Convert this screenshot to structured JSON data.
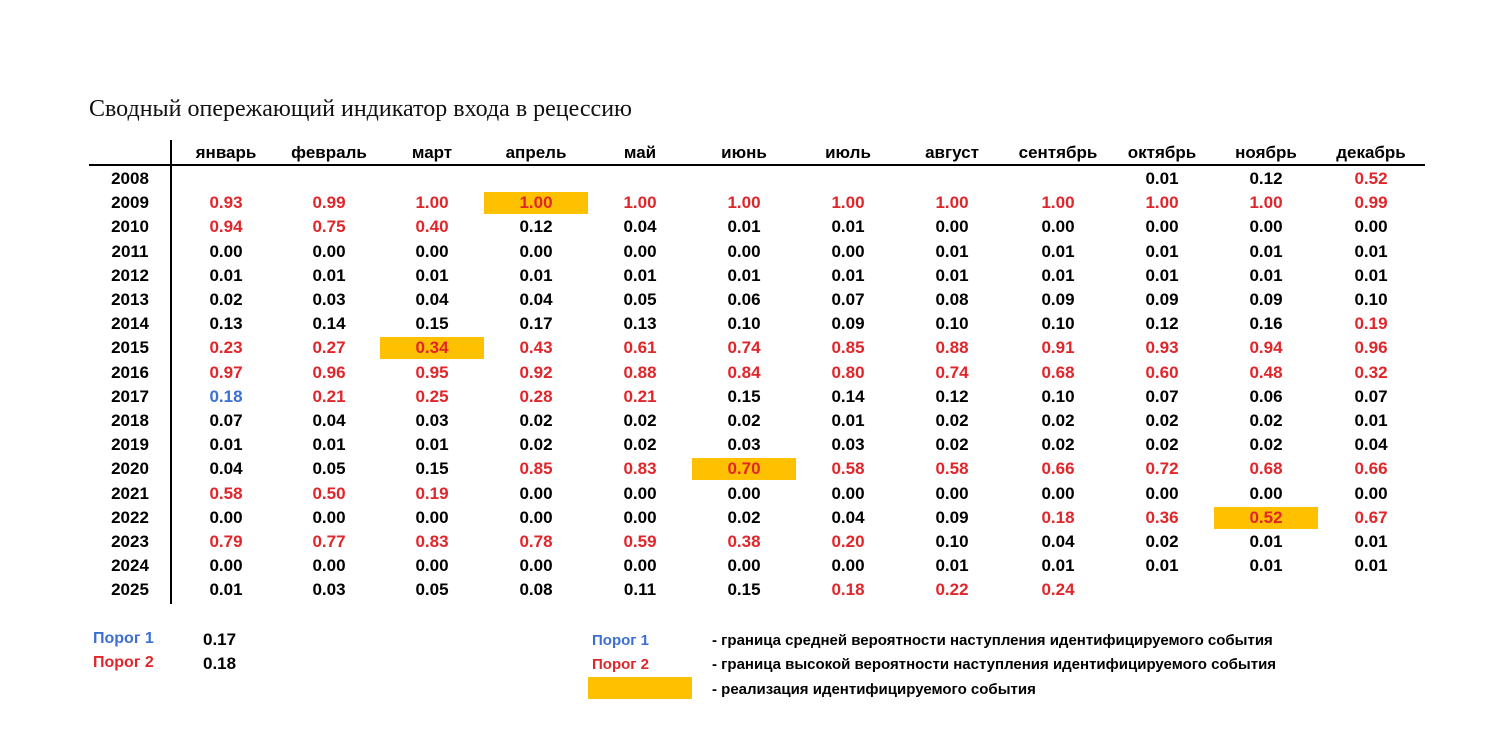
{
  "title": "Сводный опережающий индикатор входа в рецессию",
  "columns": [
    "январь",
    "февраль",
    "март",
    "апрель",
    "май",
    "июнь",
    "июль",
    "август",
    "сентябрь",
    "октябрь",
    "ноябрь",
    "декабрь"
  ],
  "colors": {
    "red": "#e0262a",
    "blue": "#3b6fd4",
    "black": "#000000",
    "highlight": "#ffc000"
  },
  "rows": [
    {
      "year": "2008",
      "values": [
        "",
        "",
        "",
        "",
        "",
        "",
        "",
        "",
        "",
        "0.01",
        "0.12",
        "0.52"
      ],
      "styles": [
        "",
        "",
        "",
        "",
        "",
        "",
        "",
        "",
        "",
        "black",
        "black",
        "red"
      ]
    },
    {
      "year": "2009",
      "values": [
        "0.93",
        "0.99",
        "1.00",
        "1.00",
        "1.00",
        "1.00",
        "1.00",
        "1.00",
        "1.00",
        "1.00",
        "1.00",
        "0.99"
      ],
      "styles": [
        "red",
        "red",
        "red",
        "red hl",
        "red",
        "red",
        "red",
        "red",
        "red",
        "red",
        "red",
        "red"
      ]
    },
    {
      "year": "2010",
      "values": [
        "0.94",
        "0.75",
        "0.40",
        "0.12",
        "0.04",
        "0.01",
        "0.01",
        "0.00",
        "0.00",
        "0.00",
        "0.00",
        "0.00"
      ],
      "styles": [
        "red",
        "red",
        "red",
        "black",
        "black",
        "black",
        "black",
        "black",
        "black",
        "black",
        "black",
        "black"
      ]
    },
    {
      "year": "2011",
      "values": [
        "0.00",
        "0.00",
        "0.00",
        "0.00",
        "0.00",
        "0.00",
        "0.00",
        "0.01",
        "0.01",
        "0.01",
        "0.01",
        "0.01"
      ],
      "styles": [
        "black",
        "black",
        "black",
        "black",
        "black",
        "black",
        "black",
        "black",
        "black",
        "black",
        "black",
        "black"
      ]
    },
    {
      "year": "2012",
      "values": [
        "0.01",
        "0.01",
        "0.01",
        "0.01",
        "0.01",
        "0.01",
        "0.01",
        "0.01",
        "0.01",
        "0.01",
        "0.01",
        "0.01"
      ],
      "styles": [
        "black",
        "black",
        "black",
        "black",
        "black",
        "black",
        "black",
        "black",
        "black",
        "black",
        "black",
        "black"
      ]
    },
    {
      "year": "2013",
      "values": [
        "0.02",
        "0.03",
        "0.04",
        "0.04",
        "0.05",
        "0.06",
        "0.07",
        "0.08",
        "0.09",
        "0.09",
        "0.09",
        "0.10"
      ],
      "styles": [
        "black",
        "black",
        "black",
        "black",
        "black",
        "black",
        "black",
        "black",
        "black",
        "black",
        "black",
        "black"
      ]
    },
    {
      "year": "2014",
      "values": [
        "0.13",
        "0.14",
        "0.15",
        "0.17",
        "0.13",
        "0.10",
        "0.09",
        "0.10",
        "0.10",
        "0.12",
        "0.16",
        "0.19"
      ],
      "styles": [
        "black",
        "black",
        "black",
        "black",
        "black",
        "black",
        "black",
        "black",
        "black",
        "black",
        "black",
        "red"
      ]
    },
    {
      "year": "2015",
      "values": [
        "0.23",
        "0.27",
        "0.34",
        "0.43",
        "0.61",
        "0.74",
        "0.85",
        "0.88",
        "0.91",
        "0.93",
        "0.94",
        "0.96"
      ],
      "styles": [
        "red",
        "red",
        "red hl",
        "red",
        "red",
        "red",
        "red",
        "red",
        "red",
        "red",
        "red",
        "red"
      ]
    },
    {
      "year": "2016",
      "values": [
        "0.97",
        "0.96",
        "0.95",
        "0.92",
        "0.88",
        "0.84",
        "0.80",
        "0.74",
        "0.68",
        "0.60",
        "0.48",
        "0.32"
      ],
      "styles": [
        "red",
        "red",
        "red",
        "red",
        "red",
        "red",
        "red",
        "red",
        "red",
        "red",
        "red",
        "red"
      ]
    },
    {
      "year": "2017",
      "values": [
        "0.18",
        "0.21",
        "0.25",
        "0.28",
        "0.21",
        "0.15",
        "0.14",
        "0.12",
        "0.10",
        "0.07",
        "0.06",
        "0.07"
      ],
      "styles": [
        "blue",
        "red",
        "red",
        "red",
        "red",
        "black",
        "black",
        "black",
        "black",
        "black",
        "black",
        "black"
      ]
    },
    {
      "year": "2018",
      "values": [
        "0.07",
        "0.04",
        "0.03",
        "0.02",
        "0.02",
        "0.02",
        "0.01",
        "0.02",
        "0.02",
        "0.02",
        "0.02",
        "0.01"
      ],
      "styles": [
        "black",
        "black",
        "black",
        "black",
        "black",
        "black",
        "black",
        "black",
        "black",
        "black",
        "black",
        "black"
      ]
    },
    {
      "year": "2019",
      "values": [
        "0.01",
        "0.01",
        "0.01",
        "0.02",
        "0.02",
        "0.03",
        "0.03",
        "0.02",
        "0.02",
        "0.02",
        "0.02",
        "0.04"
      ],
      "styles": [
        "black",
        "black",
        "black",
        "black",
        "black",
        "black",
        "black",
        "black",
        "black",
        "black",
        "black",
        "black"
      ]
    },
    {
      "year": "2020",
      "values": [
        "0.04",
        "0.05",
        "0.15",
        "0.85",
        "0.83",
        "0.70",
        "0.58",
        "0.58",
        "0.66",
        "0.72",
        "0.68",
        "0.66"
      ],
      "styles": [
        "black",
        "black",
        "black",
        "red",
        "red",
        "red hl",
        "red",
        "red",
        "red",
        "red",
        "red",
        "red"
      ]
    },
    {
      "year": "2021",
      "values": [
        "0.58",
        "0.50",
        "0.19",
        "0.00",
        "0.00",
        "0.00",
        "0.00",
        "0.00",
        "0.00",
        "0.00",
        "0.00",
        "0.00"
      ],
      "styles": [
        "red",
        "red",
        "red",
        "black",
        "black",
        "black",
        "black",
        "black",
        "black",
        "black",
        "black",
        "black"
      ]
    },
    {
      "year": "2022",
      "values": [
        "0.00",
        "0.00",
        "0.00",
        "0.00",
        "0.00",
        "0.02",
        "0.04",
        "0.09",
        "0.18",
        "0.36",
        "0.52",
        "0.67"
      ],
      "styles": [
        "black",
        "black",
        "black",
        "black",
        "black",
        "black",
        "black",
        "black",
        "red",
        "red",
        "red hl",
        "red"
      ]
    },
    {
      "year": "2023",
      "values": [
        "0.79",
        "0.77",
        "0.83",
        "0.78",
        "0.59",
        "0.38",
        "0.20",
        "0.10",
        "0.04",
        "0.02",
        "0.01",
        "0.01"
      ],
      "styles": [
        "red",
        "red",
        "red",
        "red",
        "red",
        "red",
        "red",
        "black",
        "black",
        "black",
        "black",
        "black"
      ]
    },
    {
      "year": "2024",
      "values": [
        "0.00",
        "0.00",
        "0.00",
        "0.00",
        "0.00",
        "0.00",
        "0.00",
        "0.01",
        "0.01",
        "0.01",
        "0.01",
        "0.01"
      ],
      "styles": [
        "black",
        "black",
        "black",
        "black",
        "black",
        "black",
        "black",
        "black",
        "black",
        "black",
        "black",
        "black"
      ]
    },
    {
      "year": "2025",
      "values": [
        "0.01",
        "0.03",
        "0.05",
        "0.08",
        "0.11",
        "0.15",
        "0.18",
        "0.22",
        "0.24",
        "",
        "",
        ""
      ],
      "styles": [
        "black",
        "black",
        "black",
        "black",
        "black",
        "black",
        "red",
        "red",
        "red",
        "",
        "",
        ""
      ]
    }
  ],
  "thresholds": {
    "porog1_label": "Порог 1",
    "porog1_value": "0.17",
    "porog2_label": "Порог 2",
    "porog2_value": "0.18"
  },
  "legend": {
    "porog1_label": "Порог 1",
    "porog1_text": "-   граница средней вероятности наступления идентифицируемого события",
    "porog2_label": "Порог 2",
    "porog2_text": "-   граница высокой вероятности наступления идентифицируемого события",
    "highlight_text": "-   реализация идентифицируемого события"
  },
  "chart_data": {
    "type": "table",
    "title": "Сводный опережающий индикатор входа в рецессию",
    "columns": [
      "январь",
      "февраль",
      "март",
      "апрель",
      "май",
      "июнь",
      "июль",
      "август",
      "сентябрь",
      "октябрь",
      "ноябрь",
      "декабрь"
    ],
    "row_labels": [
      "2008",
      "2009",
      "2010",
      "2011",
      "2012",
      "2013",
      "2014",
      "2015",
      "2016",
      "2017",
      "2018",
      "2019",
      "2020",
      "2021",
      "2022",
      "2023",
      "2024",
      "2025"
    ],
    "values": [
      [
        null,
        null,
        null,
        null,
        null,
        null,
        null,
        null,
        null,
        0.01,
        0.12,
        0.52
      ],
      [
        0.93,
        0.99,
        1.0,
        1.0,
        1.0,
        1.0,
        1.0,
        1.0,
        1.0,
        1.0,
        1.0,
        0.99
      ],
      [
        0.94,
        0.75,
        0.4,
        0.12,
        0.04,
        0.01,
        0.01,
        0.0,
        0.0,
        0.0,
        0.0,
        0.0
      ],
      [
        0.0,
        0.0,
        0.0,
        0.0,
        0.0,
        0.0,
        0.0,
        0.01,
        0.01,
        0.01,
        0.01,
        0.01
      ],
      [
        0.01,
        0.01,
        0.01,
        0.01,
        0.01,
        0.01,
        0.01,
        0.01,
        0.01,
        0.01,
        0.01,
        0.01
      ],
      [
        0.02,
        0.03,
        0.04,
        0.04,
        0.05,
        0.06,
        0.07,
        0.08,
        0.09,
        0.09,
        0.09,
        0.1
      ],
      [
        0.13,
        0.14,
        0.15,
        0.17,
        0.13,
        0.1,
        0.09,
        0.1,
        0.1,
        0.12,
        0.16,
        0.19
      ],
      [
        0.23,
        0.27,
        0.34,
        0.43,
        0.61,
        0.74,
        0.85,
        0.88,
        0.91,
        0.93,
        0.94,
        0.96
      ],
      [
        0.97,
        0.96,
        0.95,
        0.92,
        0.88,
        0.84,
        0.8,
        0.74,
        0.68,
        0.6,
        0.48,
        0.32
      ],
      [
        0.18,
        0.21,
        0.25,
        0.28,
        0.21,
        0.15,
        0.14,
        0.12,
        0.1,
        0.07,
        0.06,
        0.07
      ],
      [
        0.07,
        0.04,
        0.03,
        0.02,
        0.02,
        0.02,
        0.01,
        0.02,
        0.02,
        0.02,
        0.02,
        0.01
      ],
      [
        0.01,
        0.01,
        0.01,
        0.02,
        0.02,
        0.03,
        0.03,
        0.02,
        0.02,
        0.02,
        0.02,
        0.04
      ],
      [
        0.04,
        0.05,
        0.15,
        0.85,
        0.83,
        0.7,
        0.58,
        0.58,
        0.66,
        0.72,
        0.68,
        0.66
      ],
      [
        0.58,
        0.5,
        0.19,
        0.0,
        0.0,
        0.0,
        0.0,
        0.0,
        0.0,
        0.0,
        0.0,
        0.0
      ],
      [
        0.0,
        0.0,
        0.0,
        0.0,
        0.0,
        0.02,
        0.04,
        0.09,
        0.18,
        0.36,
        0.52,
        0.67
      ],
      [
        0.79,
        0.77,
        0.83,
        0.78,
        0.59,
        0.38,
        0.2,
        0.1,
        0.04,
        0.02,
        0.01,
        0.01
      ],
      [
        0.0,
        0.0,
        0.0,
        0.0,
        0.0,
        0.0,
        0.0,
        0.01,
        0.01,
        0.01,
        0.01,
        0.01
      ],
      [
        0.01,
        0.03,
        0.05,
        0.08,
        0.11,
        0.15,
        0.18,
        0.22,
        0.24,
        null,
        null,
        null
      ]
    ],
    "highlighted_cells": [
      {
        "year": "2009",
        "month": "апрель",
        "value": 1.0
      },
      {
        "year": "2015",
        "month": "март",
        "value": 0.34
      },
      {
        "year": "2020",
        "month": "июнь",
        "value": 0.7
      },
      {
        "year": "2022",
        "month": "ноябрь",
        "value": 0.52
      }
    ],
    "thresholds": {
      "Порог 1": 0.17,
      "Порог 2": 0.18
    },
    "legend": [
      "Порог 1 - граница средней вероятности наступления идентифицируемого события",
      "Порог 2 - граница высокой вероятности наступления идентифицируемого события",
      "оранжевая заливка - реализация идентифицируемого события"
    ]
  }
}
